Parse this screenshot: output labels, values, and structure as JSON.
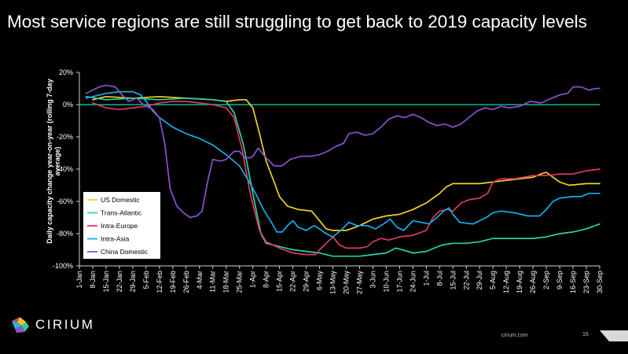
{
  "slide": {
    "title": "Most service regions are still struggling to get back to 2019 capacity levels",
    "logo_text": "CIRIUM",
    "footer_site": "cirium.com",
    "page_number": "16"
  },
  "chart_data": {
    "type": "line",
    "ylabel": "Daily capacity change year-on-year (rolling 7-day average)",
    "ylim": [
      -100,
      20
    ],
    "yticks": [
      -100,
      -80,
      -60,
      -40,
      -20,
      0,
      20
    ],
    "ytick_labels": [
      "-100%",
      "-80%",
      "-60%",
      "-40%",
      "-20%",
      "0%",
      "20%"
    ],
    "x_categories": [
      "1-Jan",
      "8-Jan",
      "15-Jan",
      "22-Jan",
      "29-Jan",
      "5-Feb",
      "12-Feb",
      "19-Feb",
      "26-Feb",
      "4-Mar",
      "11-Mar",
      "18-Mar",
      "25-Mar",
      "1-Apr",
      "8-Apr",
      "15-Apr",
      "22-Apr",
      "29-Apr",
      "6-May",
      "13-May",
      "20-May",
      "27-May",
      "3-Jun",
      "10-Jun",
      "17-Jun",
      "24-Jun",
      "1-Jul",
      "8-Jul",
      "15-Jul",
      "22-Jul",
      "29-Jul",
      "5-Aug",
      "12-Aug",
      "19-Aug",
      "26-Aug",
      "2-Sep",
      "9-Sep",
      "16-Sep",
      "23-Sep",
      "30-Sep"
    ],
    "zero_line_color": "#00b894",
    "legend_position": "left-bottom",
    "series": [
      {
        "name": "US Domestic",
        "color": "#f2d028",
        "points": [
          [
            1,
            3
          ],
          [
            2,
            5
          ],
          [
            4,
            4
          ],
          [
            6,
            5
          ],
          [
            8,
            4
          ],
          [
            10,
            3
          ],
          [
            11,
            2
          ],
          [
            12,
            3
          ],
          [
            12.5,
            3
          ],
          [
            13,
            -2
          ],
          [
            13.5,
            -18
          ],
          [
            14,
            -35
          ],
          [
            14.6,
            -48
          ],
          [
            15,
            -57
          ],
          [
            15.6,
            -63
          ],
          [
            16.4,
            -65
          ],
          [
            17.4,
            -66
          ],
          [
            18,
            -72
          ],
          [
            18.5,
            -77
          ],
          [
            19,
            -78
          ],
          [
            20,
            -78
          ],
          [
            21,
            -75
          ],
          [
            22,
            -71
          ],
          [
            23,
            -69
          ],
          [
            24,
            -68
          ],
          [
            25,
            -65
          ],
          [
            26,
            -61
          ],
          [
            27,
            -55
          ],
          [
            27.5,
            -51
          ],
          [
            28,
            -49
          ],
          [
            30,
            -49
          ],
          [
            31,
            -48
          ],
          [
            32,
            -47
          ],
          [
            34,
            -45
          ],
          [
            34.6,
            -43
          ],
          [
            35,
            -42
          ],
          [
            35.5,
            -45
          ],
          [
            36,
            -48
          ],
          [
            36.7,
            -50
          ],
          [
            38,
            -49
          ],
          [
            39,
            -49
          ]
        ]
      },
      {
        "name": "Trans-Atlantic",
        "color": "#2bd2a5",
        "points": [
          [
            0.5,
            5
          ],
          [
            2,
            3
          ],
          [
            4,
            4
          ],
          [
            6,
            3
          ],
          [
            8,
            4
          ],
          [
            10,
            3
          ],
          [
            11,
            2
          ],
          [
            11.6,
            -5
          ],
          [
            12.3,
            -25
          ],
          [
            13,
            -55
          ],
          [
            13.6,
            -80
          ],
          [
            14,
            -86
          ],
          [
            15,
            -88
          ],
          [
            16,
            -90
          ],
          [
            17,
            -91
          ],
          [
            18,
            -92
          ],
          [
            19,
            -94
          ],
          [
            20,
            -94
          ],
          [
            21,
            -94
          ],
          [
            22,
            -93
          ],
          [
            23,
            -92
          ],
          [
            23.7,
            -89
          ],
          [
            24.2,
            -90
          ],
          [
            25,
            -92
          ],
          [
            26,
            -91
          ],
          [
            26.6,
            -89
          ],
          [
            27.2,
            -87
          ],
          [
            28,
            -86
          ],
          [
            29,
            -86
          ],
          [
            30,
            -85
          ],
          [
            30.5,
            -84
          ],
          [
            31,
            -83
          ],
          [
            32,
            -83
          ],
          [
            33,
            -83
          ],
          [
            34,
            -83
          ],
          [
            35,
            -82
          ],
          [
            36,
            -80
          ],
          [
            37,
            -79
          ],
          [
            38,
            -77
          ],
          [
            39,
            -74
          ]
        ]
      },
      {
        "name": "Intra-Europe",
        "color": "#e23a5b",
        "points": [
          [
            1,
            1
          ],
          [
            2,
            -2
          ],
          [
            3,
            -3
          ],
          [
            4,
            -2
          ],
          [
            5,
            -1
          ],
          [
            6,
            1
          ],
          [
            7,
            2
          ],
          [
            8,
            2
          ],
          [
            9,
            1
          ],
          [
            10,
            0
          ],
          [
            11,
            -2
          ],
          [
            11.6,
            -8
          ],
          [
            12.2,
            -28
          ],
          [
            12.8,
            -55
          ],
          [
            13.5,
            -78
          ],
          [
            14,
            -85
          ],
          [
            15,
            -89
          ],
          [
            16,
            -92
          ],
          [
            17,
            -93
          ],
          [
            17.7,
            -93
          ],
          [
            18,
            -90
          ],
          [
            18.5,
            -86
          ],
          [
            19,
            -82
          ],
          [
            19.5,
            -87
          ],
          [
            20,
            -89
          ],
          [
            21,
            -89
          ],
          [
            21.6,
            -88
          ],
          [
            22,
            -85
          ],
          [
            22.6,
            -83
          ],
          [
            23.2,
            -84
          ],
          [
            24,
            -82
          ],
          [
            25,
            -81
          ],
          [
            26,
            -78
          ],
          [
            26.5,
            -70
          ],
          [
            27,
            -66
          ],
          [
            27.6,
            -65
          ],
          [
            28,
            -66
          ],
          [
            28.6,
            -61
          ],
          [
            29.2,
            -59
          ],
          [
            30,
            -58
          ],
          [
            30.6,
            -55
          ],
          [
            31,
            -48
          ],
          [
            31.6,
            -46
          ],
          [
            32.6,
            -46
          ],
          [
            34,
            -44
          ],
          [
            35,
            -44
          ],
          [
            36,
            -43
          ],
          [
            37,
            -43
          ],
          [
            38,
            -41
          ],
          [
            39,
            -40
          ]
        ]
      },
      {
        "name": "Intra-Asia",
        "color": "#17aee8",
        "points": [
          [
            0.5,
            4
          ],
          [
            1,
            5
          ],
          [
            2,
            7
          ],
          [
            3,
            8
          ],
          [
            4,
            8
          ],
          [
            4.6,
            6
          ],
          [
            5,
            2
          ],
          [
            5.5,
            -4
          ],
          [
            6,
            -8
          ],
          [
            7,
            -14
          ],
          [
            8,
            -18
          ],
          [
            9,
            -21
          ],
          [
            10,
            -25
          ],
          [
            11,
            -31
          ],
          [
            12,
            -38
          ],
          [
            12.6,
            -46
          ],
          [
            13.2,
            -55
          ],
          [
            13.8,
            -65
          ],
          [
            14.4,
            -73
          ],
          [
            14.8,
            -79
          ],
          [
            15.2,
            -79
          ],
          [
            15.6,
            -75
          ],
          [
            16,
            -72
          ],
          [
            16.4,
            -76
          ],
          [
            17,
            -78
          ],
          [
            17.6,
            -75
          ],
          [
            18,
            -77
          ],
          [
            18.5,
            -80
          ],
          [
            19,
            -82
          ],
          [
            19.6,
            -78
          ],
          [
            20.2,
            -73
          ],
          [
            20.8,
            -75
          ],
          [
            21.6,
            -75
          ],
          [
            22.2,
            -77
          ],
          [
            22.8,
            -74
          ],
          [
            23.3,
            -71
          ],
          [
            23.8,
            -76
          ],
          [
            24.3,
            -78
          ],
          [
            25,
            -72
          ],
          [
            25.6,
            -73
          ],
          [
            26.2,
            -74
          ],
          [
            26.8,
            -70
          ],
          [
            27.3,
            -66
          ],
          [
            27.7,
            -64
          ],
          [
            28,
            -68
          ],
          [
            28.5,
            -73
          ],
          [
            29.5,
            -74
          ],
          [
            30,
            -72
          ],
          [
            30.5,
            -70
          ],
          [
            31,
            -67
          ],
          [
            31.6,
            -66
          ],
          [
            32.6,
            -67
          ],
          [
            33.6,
            -69
          ],
          [
            34.5,
            -69
          ],
          [
            35,
            -65
          ],
          [
            35.5,
            -60
          ],
          [
            36,
            -58
          ],
          [
            37,
            -57
          ],
          [
            37.6,
            -57
          ],
          [
            38.2,
            -55
          ],
          [
            39,
            -55
          ]
        ]
      },
      {
        "name": "China Domestic",
        "color": "#8b52cc",
        "points": [
          [
            0.5,
            7
          ],
          [
            1,
            9
          ],
          [
            1.5,
            11
          ],
          [
            2,
            12
          ],
          [
            2.7,
            11
          ],
          [
            3.2,
            6
          ],
          [
            3.7,
            2
          ],
          [
            4.3,
            4
          ],
          [
            4.8,
            0
          ],
          [
            5.5,
            -3
          ],
          [
            6,
            -8
          ],
          [
            6.4,
            -24
          ],
          [
            6.8,
            -52
          ],
          [
            7.3,
            -63
          ],
          [
            7.8,
            -67
          ],
          [
            8.3,
            -70
          ],
          [
            8.8,
            -69
          ],
          [
            9.2,
            -66
          ],
          [
            9.6,
            -48
          ],
          [
            10,
            -34
          ],
          [
            10.6,
            -35
          ],
          [
            11,
            -34
          ],
          [
            11.6,
            -29
          ],
          [
            12,
            -29
          ],
          [
            12.4,
            -33
          ],
          [
            12.8,
            -33
          ],
          [
            13,
            -32
          ],
          [
            13.4,
            -27
          ],
          [
            14,
            -33
          ],
          [
            14.6,
            -38
          ],
          [
            15.2,
            -38
          ],
          [
            15.8,
            -34
          ],
          [
            16.6,
            -32
          ],
          [
            17.4,
            -32
          ],
          [
            18,
            -31
          ],
          [
            18.6,
            -29
          ],
          [
            19.2,
            -26
          ],
          [
            19.8,
            -24
          ],
          [
            20.2,
            -18
          ],
          [
            20.8,
            -17
          ],
          [
            21.4,
            -19
          ],
          [
            22,
            -18
          ],
          [
            22.6,
            -14
          ],
          [
            23.2,
            -9
          ],
          [
            23.8,
            -7
          ],
          [
            24.4,
            -8
          ],
          [
            25,
            -6
          ],
          [
            25.6,
            -8
          ],
          [
            26.2,
            -11
          ],
          [
            26.8,
            -13
          ],
          [
            27.4,
            -12
          ],
          [
            28,
            -14
          ],
          [
            28.6,
            -12
          ],
          [
            29.2,
            -8
          ],
          [
            29.8,
            -4
          ],
          [
            30.4,
            -2
          ],
          [
            31,
            -3
          ],
          [
            31.6,
            -1
          ],
          [
            32.2,
            -2
          ],
          [
            33,
            -1
          ],
          [
            33.8,
            2
          ],
          [
            34.6,
            1
          ],
          [
            35.4,
            4
          ],
          [
            36,
            6
          ],
          [
            36.6,
            7
          ],
          [
            37,
            11
          ],
          [
            37.6,
            11
          ],
          [
            38.2,
            9
          ],
          [
            38.7,
            10
          ],
          [
            39,
            10
          ]
        ]
      }
    ]
  }
}
